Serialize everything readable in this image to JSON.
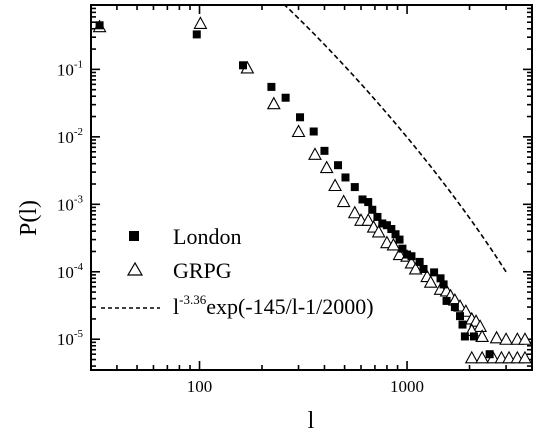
{
  "chart_data": {
    "type": "scatter",
    "xlabel": "l",
    "ylabel": "P(l)",
    "xscale": "log",
    "yscale": "log",
    "xlim": [
      30,
      4000
    ],
    "ylim": [
      3.5e-06,
      0.9
    ],
    "xticks": [
      {
        "value": 100,
        "label": "100"
      },
      {
        "value": 1000,
        "label": "1000"
      }
    ],
    "yticks": [
      {
        "value": 1e-05,
        "base": "10",
        "exp": "-5"
      },
      {
        "value": 0.0001,
        "base": "10",
        "exp": "-4"
      },
      {
        "value": 0.001,
        "base": "10",
        "exp": "-3"
      },
      {
        "value": 0.01,
        "base": "10",
        "exp": "-2"
      },
      {
        "value": 0.1,
        "base": "10",
        "exp": "-1"
      }
    ],
    "grid": false,
    "legend_position": "bottom-left",
    "series": [
      {
        "name": "London",
        "marker": "filled-square",
        "color": "#000000",
        "points": [
          [
            33,
            0.45
          ],
          [
            97,
            0.33
          ],
          [
            162,
            0.115
          ],
          [
            222,
            0.055
          ],
          [
            260,
            0.038
          ],
          [
            305,
            0.0195
          ],
          [
            355,
            0.012
          ],
          [
            400,
            0.0062
          ],
          [
            465,
            0.0038
          ],
          [
            505,
            0.0025
          ],
          [
            560,
            0.0018
          ],
          [
            610,
            0.00118
          ],
          [
            650,
            0.00108
          ],
          [
            680,
            0.00083
          ],
          [
            720,
            0.00065
          ],
          [
            760,
            0.00052
          ],
          [
            800,
            0.00049
          ],
          [
            840,
            0.00043
          ],
          [
            880,
            0.00036
          ],
          [
            920,
            0.0003
          ],
          [
            950,
            0.00022
          ],
          [
            1000,
            0.00018
          ],
          [
            1050,
            0.00017
          ],
          [
            1150,
            0.00014
          ],
          [
            1200,
            0.00011
          ],
          [
            1350,
            9.8e-05
          ],
          [
            1450,
            8e-05
          ],
          [
            1500,
            6.5e-05
          ],
          [
            1550,
            3.7e-05
          ],
          [
            1700,
            3e-05
          ],
          [
            1800,
            2.2e-05
          ],
          [
            1850,
            1.65e-05
          ],
          [
            1900,
            1.1e-05
          ],
          [
            2100,
            1.1e-05
          ],
          [
            2500,
            6e-06
          ]
        ]
      },
      {
        "name": "GRPG",
        "marker": "open-triangle",
        "color": "#000000",
        "points": [
          [
            33,
            0.43
          ],
          [
            101,
            0.48
          ],
          [
            170,
            0.105
          ],
          [
            228,
            0.031
          ],
          [
            300,
            0.012
          ],
          [
            360,
            0.0055
          ],
          [
            410,
            0.0035
          ],
          [
            450,
            0.0019
          ],
          [
            495,
            0.0011
          ],
          [
            560,
            0.00075
          ],
          [
            600,
            0.00058
          ],
          [
            650,
            0.00058
          ],
          [
            690,
            0.00046
          ],
          [
            730,
            0.00039
          ],
          [
            800,
            0.00027
          ],
          [
            860,
            0.00025
          ],
          [
            920,
            0.00018
          ],
          [
            1000,
            0.00017
          ],
          [
            1050,
            0.000135
          ],
          [
            1100,
            0.00011
          ],
          [
            1250,
            8.5e-05
          ],
          [
            1300,
            7e-05
          ],
          [
            1450,
            5.5e-05
          ],
          [
            1550,
            5.2e-05
          ],
          [
            1620,
            4.4e-05
          ],
          [
            1700,
            3.8e-05
          ],
          [
            1800,
            3.1e-05
          ],
          [
            1920,
            2.6e-05
          ],
          [
            2050,
            2e-05
          ],
          [
            2150,
            1.85e-05
          ],
          [
            2250,
            1.55e-05
          ],
          [
            2050,
            1.35e-05
          ],
          [
            2300,
            1.1e-05
          ],
          [
            2700,
            1.05e-05
          ],
          [
            3000,
            1e-05
          ],
          [
            3400,
            1e-05
          ],
          [
            3700,
            1e-05
          ],
          [
            2050,
            5.3e-06
          ],
          [
            2300,
            5.3e-06
          ],
          [
            2600,
            5.3e-06
          ],
          [
            2850,
            5.3e-06
          ],
          [
            3100,
            5.3e-06
          ],
          [
            3400,
            5.3e-06
          ],
          [
            3700,
            5.3e-06
          ]
        ]
      },
      {
        "name": "l^-3.36 exp(-145/l-1/2000)",
        "line_style": "dashed",
        "color": "#000000",
        "formula": {
          "amplitude": 226000000.0,
          "exponent": -3.36,
          "a": 145,
          "b": 2000
        }
      }
    ],
    "legend": [
      {
        "label": "London",
        "marker": "filled-square"
      },
      {
        "label": "GRPG",
        "marker": "open-triangle"
      },
      {
        "label_base": "l",
        "label_sup": "-3.36",
        "label_rest": "exp(-145/l-1/2000)",
        "marker": "dashed-line"
      }
    ]
  }
}
